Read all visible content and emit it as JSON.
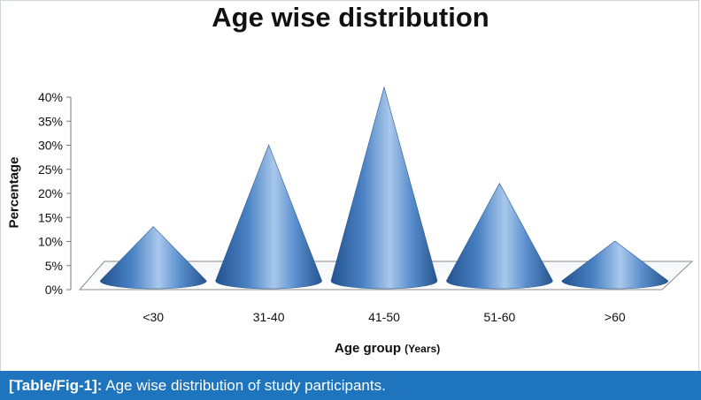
{
  "chart_data": {
    "type": "bar",
    "bar_shape": "cone",
    "title": "Age wise distribution",
    "xlabel": "Age group",
    "xlabel_unit": "(Years)",
    "ylabel": "Percentage",
    "categories": [
      "<30",
      "31-40",
      "41-50",
      "51-60",
      ">60"
    ],
    "values": [
      12,
      29,
      41,
      21,
      9
    ],
    "ylim": [
      0,
      40
    ],
    "yticks": [
      "0%",
      "5%",
      "10%",
      "15%",
      "20%",
      "25%",
      "30%",
      "35%",
      "40%"
    ],
    "grid": false,
    "bar_color": "#4f86c6"
  },
  "caption": {
    "label": "[Table/Fig-1]:",
    "text": "Age wise distribution of study participants."
  }
}
